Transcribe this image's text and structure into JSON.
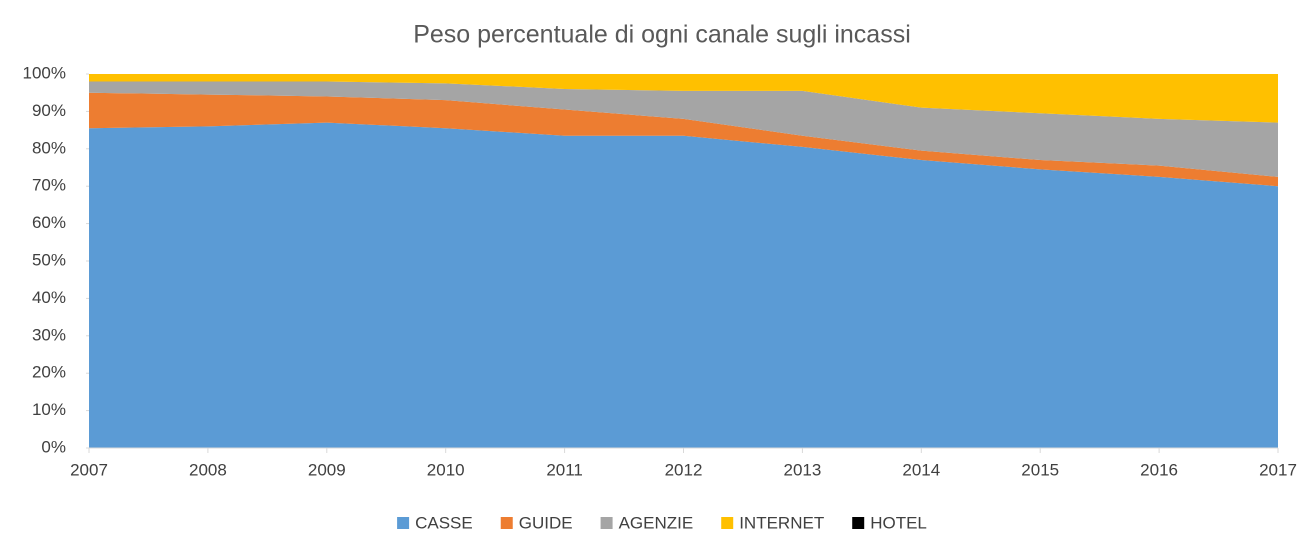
{
  "chart_data": {
    "type": "stacked_area",
    "title": "Peso percentuale di ogni canale sugli incassi",
    "x": [
      2007,
      2008,
      2009,
      2010,
      2011,
      2012,
      2013,
      2014,
      2015,
      2016,
      2017
    ],
    "xlim": [
      2007,
      2017
    ],
    "xticks": [
      2007,
      2008,
      2009,
      2010,
      2011,
      2012,
      2013,
      2014,
      2015,
      2016,
      2017
    ],
    "ylim": [
      0,
      100
    ],
    "yticks": [
      {
        "value": 0,
        "label": "0%"
      },
      {
        "value": 10,
        "label": "10%"
      },
      {
        "value": 20,
        "label": "20%"
      },
      {
        "value": 30,
        "label": "30%"
      },
      {
        "value": 40,
        "label": "40%"
      },
      {
        "value": 50,
        "label": "50%"
      },
      {
        "value": 60,
        "label": "60%"
      },
      {
        "value": 70,
        "label": "70%"
      },
      {
        "value": 80,
        "label": "80%"
      },
      {
        "value": 90,
        "label": "90%"
      },
      {
        "value": 100,
        "label": "100%"
      }
    ],
    "series": [
      {
        "name": "CASSE",
        "color": "#5b9bd5",
        "values": [
          85.5,
          86,
          87,
          85.5,
          83.5,
          83.5,
          80.5,
          77,
          74.5,
          72.5,
          70
        ]
      },
      {
        "name": "GUIDE",
        "color": "#ed7d31",
        "values": [
          9.5,
          8.5,
          7,
          7.5,
          7,
          4.5,
          3,
          2.5,
          2.5,
          3,
          2.5
        ]
      },
      {
        "name": "AGENZIE",
        "color": "#a5a5a5",
        "values": [
          3,
          3.5,
          4,
          4.5,
          5.5,
          7.5,
          12,
          11.5,
          12.5,
          12.5,
          14.5
        ]
      },
      {
        "name": "INTERNET",
        "color": "#ffc000",
        "values": [
          2,
          2,
          2,
          2.5,
          4,
          4.5,
          4.5,
          9,
          10.5,
          12,
          13
        ]
      },
      {
        "name": "HOTEL",
        "color": "#000000",
        "values": [
          0,
          0,
          0,
          0,
          0,
          0,
          0,
          0,
          0,
          0,
          0
        ]
      }
    ],
    "legend": "bottom"
  }
}
